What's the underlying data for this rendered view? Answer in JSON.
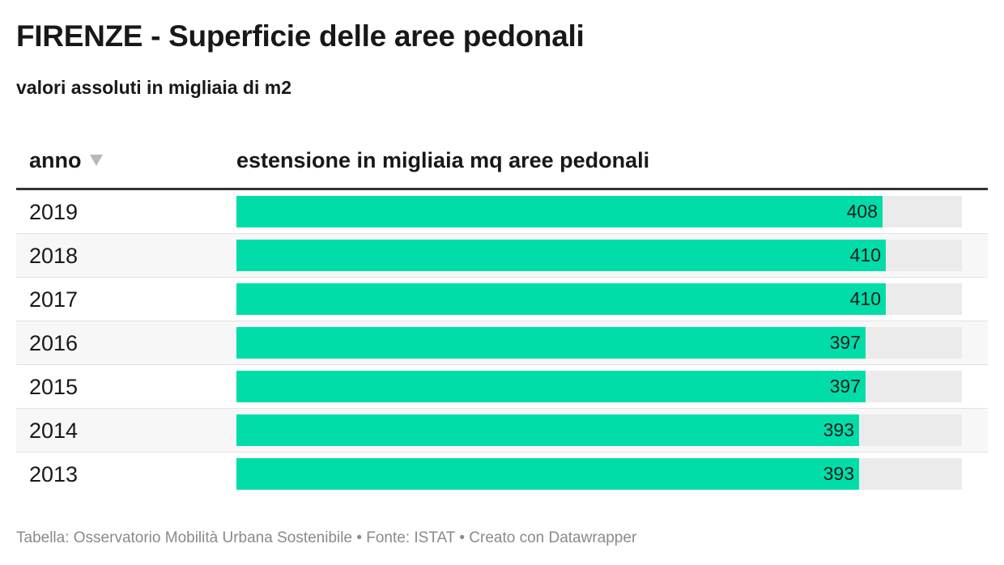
{
  "title": "FIRENZE - Superficie delle aree pedonali",
  "subtitle": "valori assoluti in migliaia di m2",
  "table": {
    "col_year": "anno",
    "col_value": "estensione in migliaia mq aree pedonali",
    "sort": "descending"
  },
  "footer": {
    "text": "Tabella: Osservatorio Mobilità Urbana Sostenibile • Fonte: ISTAT • Creato con Datawrapper"
  },
  "colors": {
    "bar": "#00dda9",
    "track": "#ebebeb"
  },
  "chart_data": {
    "type": "table",
    "title": "FIRENZE - Superficie delle aree pedonali",
    "subtitle": "valori assoluti in migliaia di m2",
    "columns": [
      "anno",
      "estensione in migliaia mq aree pedonali"
    ],
    "max": 458,
    "rows": [
      {
        "year": "2019",
        "value": 408
      },
      {
        "year": "2018",
        "value": 410
      },
      {
        "year": "2017",
        "value": 410
      },
      {
        "year": "2016",
        "value": 397
      },
      {
        "year": "2015",
        "value": 397
      },
      {
        "year": "2014",
        "value": 393
      },
      {
        "year": "2013",
        "value": 393
      }
    ]
  }
}
